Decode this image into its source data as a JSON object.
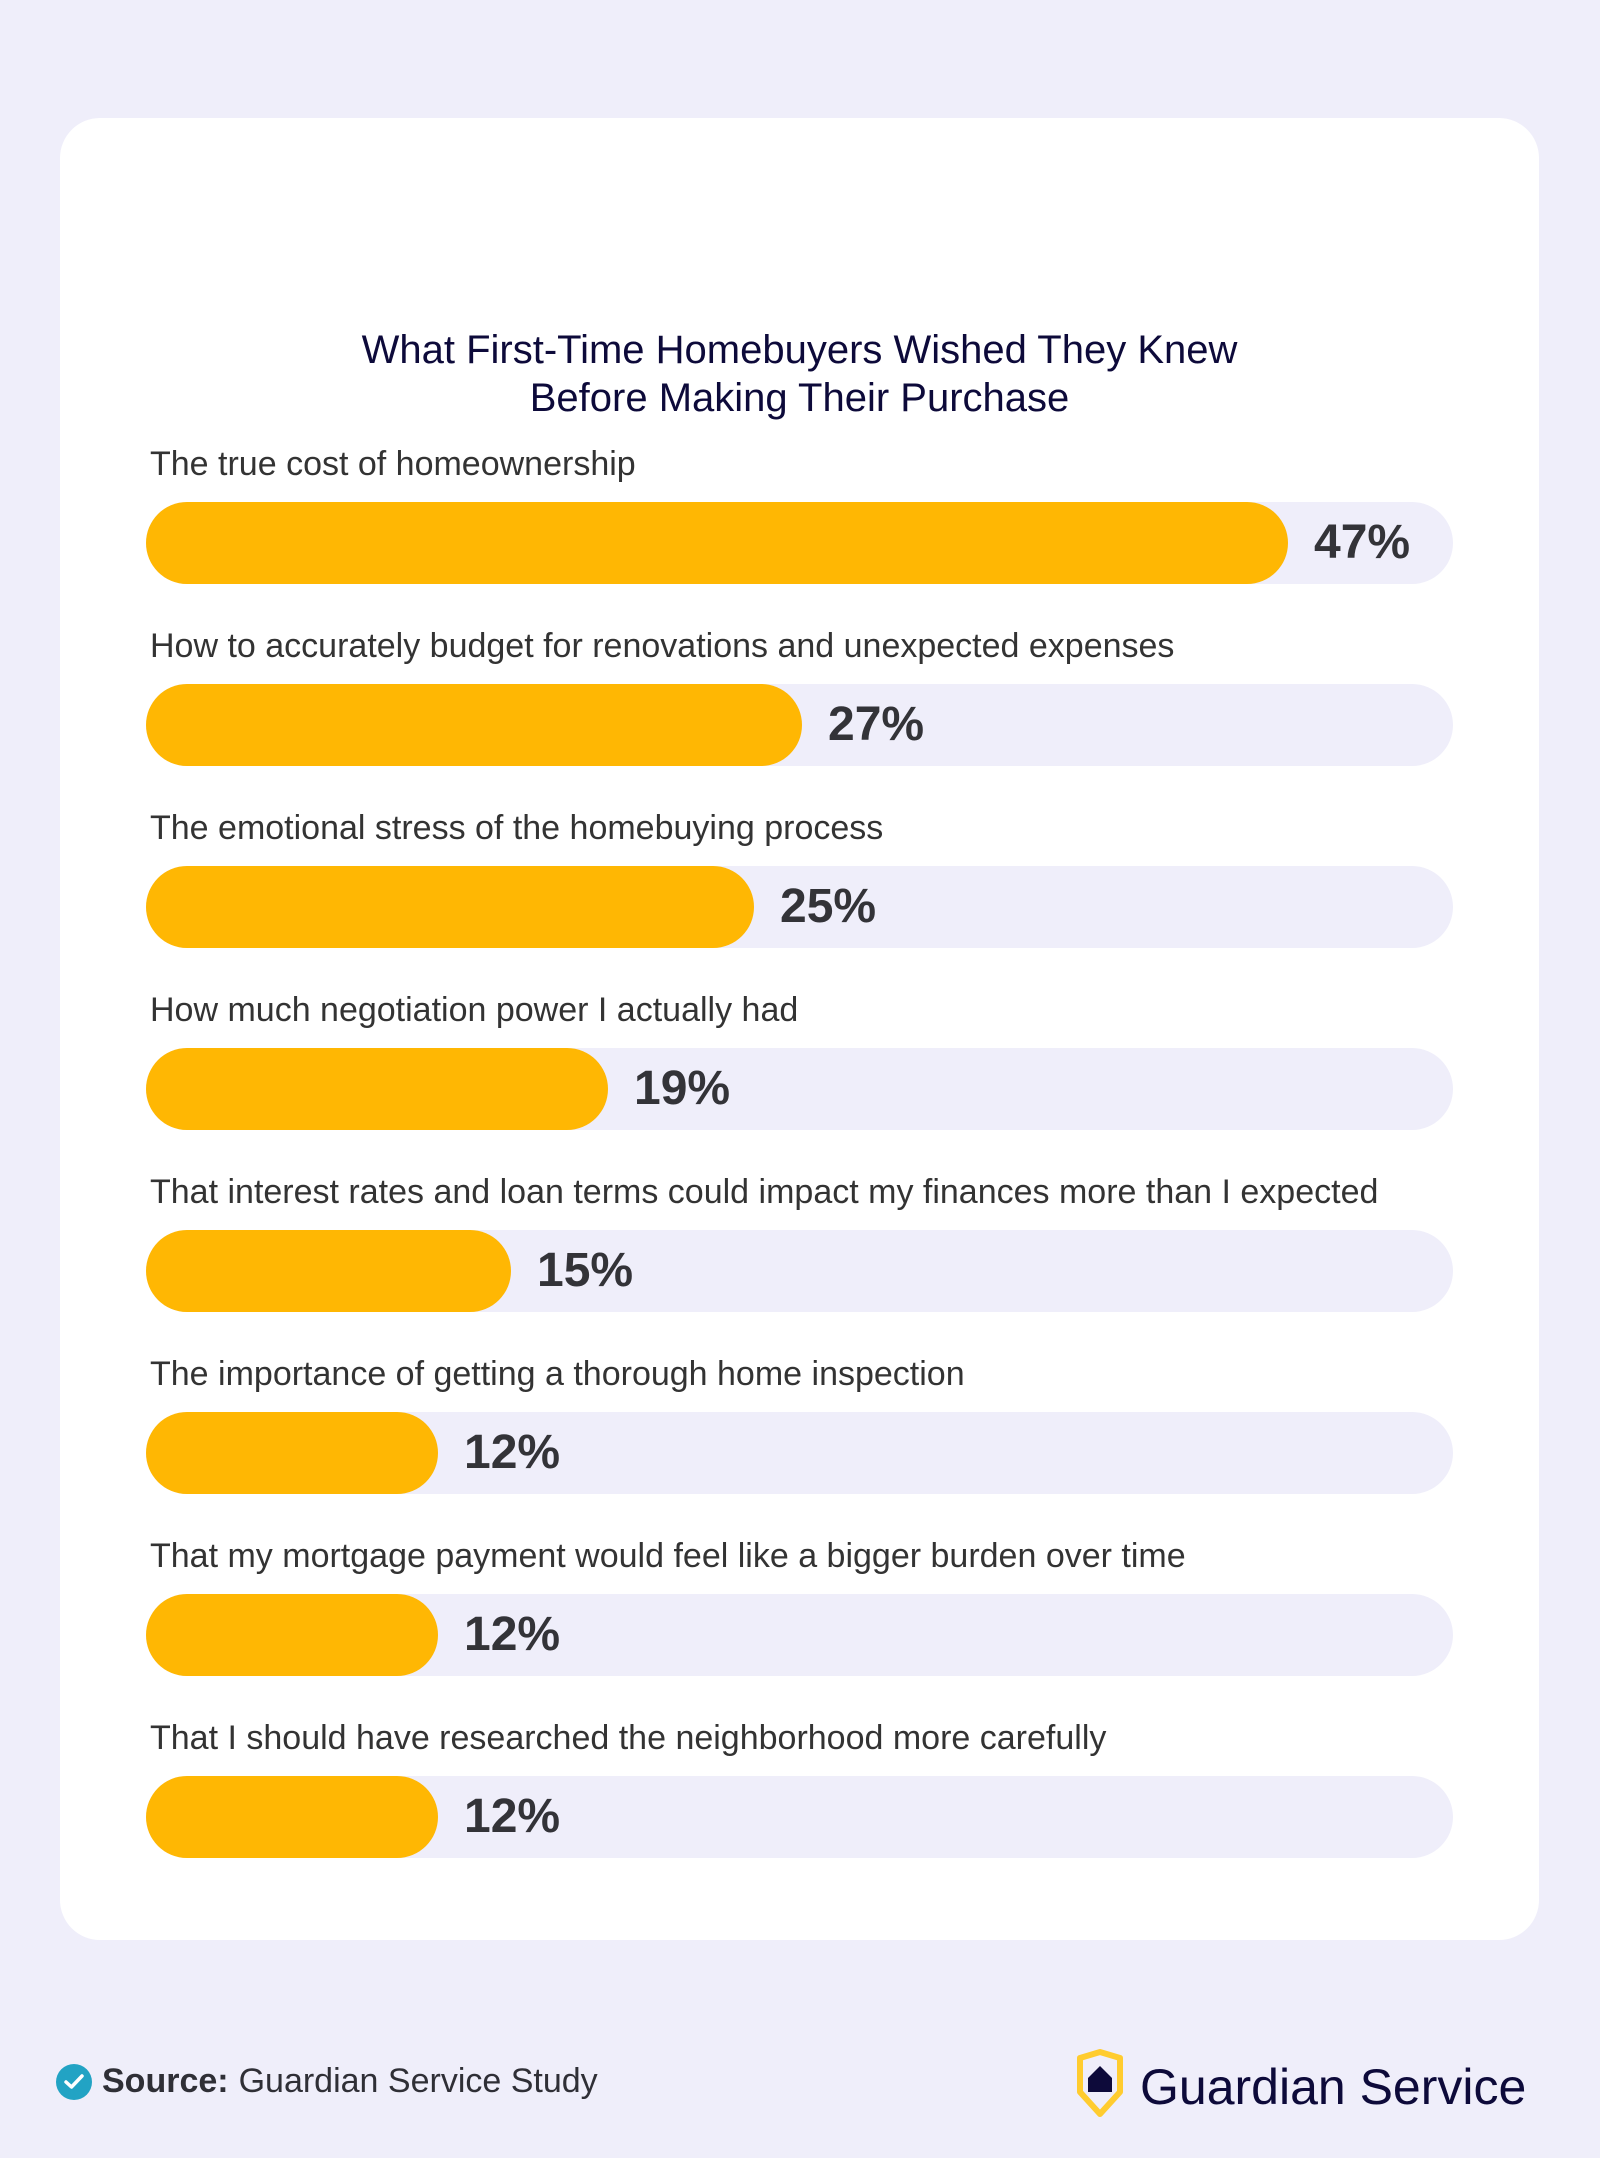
{
  "title": "What First-Time Homebuyers Wished They Knew Before Making Their Purchase",
  "colors": {
    "background": "#efeefa",
    "card": "#ffffff",
    "bar_fill": "#ffb703",
    "bar_track": "#efeefa",
    "title": "#0d0a3a",
    "check": "#22a3c4",
    "logo_shield": "#ffcc2f"
  },
  "rows": [
    {
      "label": "The true cost of homeownership",
      "value": 47,
      "display": "47%"
    },
    {
      "label": "How to accurately budget for renovations and unexpected expenses",
      "value": 27,
      "display": "27%"
    },
    {
      "label": "The emotional stress of the homebuying process",
      "value": 25,
      "display": "25%"
    },
    {
      "label": "How much negotiation power I actually had",
      "value": 19,
      "display": "19%"
    },
    {
      "label": "That interest rates and loan terms could impact my finances more than I expected",
      "value": 15,
      "display": "15%"
    },
    {
      "label": "The importance of getting a thorough home inspection",
      "value": 12,
      "display": "12%"
    },
    {
      "label": "That my mortgage payment would feel like a bigger burden over time",
      "value": 12,
      "display": "12%"
    },
    {
      "label": "That I should have researched the neighborhood more carefully",
      "value": 12,
      "display": "12%"
    }
  ],
  "footer": {
    "source_label": "Source:",
    "source_text": "Guardian Service Study",
    "brand": "Guardian Service",
    "check_icon": "check-circle-icon",
    "logo_icon": "shield-house-icon"
  },
  "chart_data": {
    "type": "bar",
    "orientation": "horizontal",
    "title": "What First-Time Homebuyers Wished They Knew Before Making Their Purchase",
    "categories": [
      "The true cost of homeownership",
      "How to accurately budget for renovations and unexpected expenses",
      "The emotional stress of the homebuying process",
      "How much negotiation power I actually had",
      "That interest rates and loan terms could impact my finances more than I expected",
      "The importance of getting a thorough home inspection",
      "That my mortgage payment would feel like a bigger burden over time",
      "That I should have researched the neighborhood more carefully"
    ],
    "values": [
      47,
      27,
      25,
      19,
      15,
      12,
      12,
      12
    ],
    "unit": "%",
    "xlabel": "",
    "ylabel": "",
    "grid": false,
    "legend": null,
    "source": "Guardian Service Study"
  }
}
